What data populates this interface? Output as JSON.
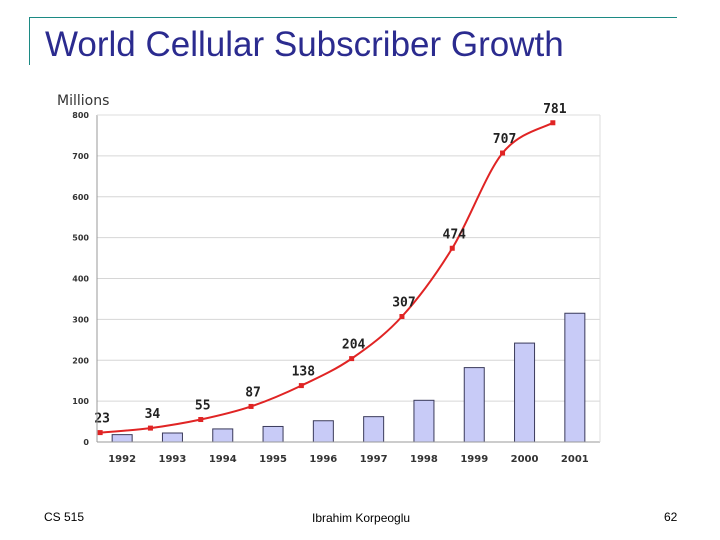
{
  "slide": {
    "title": "World Cellular Subscriber Growth",
    "footer_left": "CS 515",
    "footer_center": "Ibrahim Korpeoglu",
    "footer_right": "62"
  },
  "colors": {
    "title": "#2b2b8f",
    "frame": "#1c8a84",
    "bar_fill": "#c8cbf7",
    "bar_stroke": "#3a3a5a",
    "line": "#e02424",
    "grid": "#d6d6d6",
    "axis_text": "#333333"
  },
  "chart_data": {
    "type": "bar",
    "title": "",
    "ylabel": "Millions",
    "xlabel": "",
    "ylim": [
      0,
      800
    ],
    "yticks": [
      0,
      100,
      200,
      300,
      400,
      500,
      600,
      700,
      800
    ],
    "grid": true,
    "categories": [
      "1992",
      "1993",
      "1994",
      "1995",
      "1996",
      "1997",
      "1998",
      "1999",
      "2000",
      "2001"
    ],
    "series": [
      {
        "type": "bar",
        "values": [
          18,
          22,
          32,
          38,
          52,
          62,
          102,
          182,
          242,
          315
        ]
      },
      {
        "type": "line",
        "values": [
          23,
          34,
          55,
          87,
          138,
          204,
          307,
          474,
          707,
          781
        ],
        "labels": [
          "23",
          "34",
          "55",
          "87",
          "138",
          "204",
          "307",
          "474",
          "707",
          "781"
        ]
      }
    ]
  }
}
